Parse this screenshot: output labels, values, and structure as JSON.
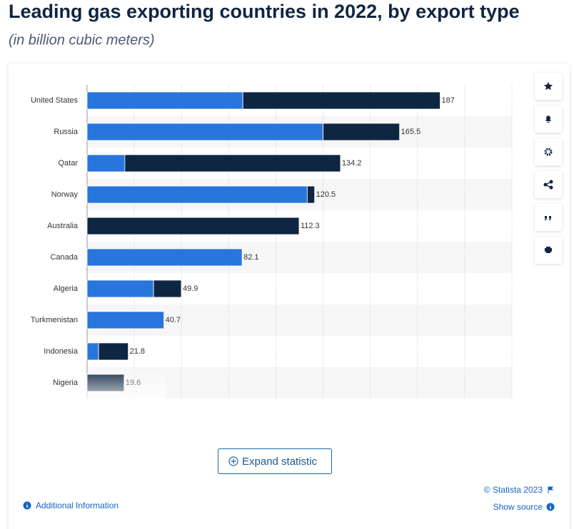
{
  "chart_data": {
    "type": "stacked-barh",
    "title": "Leading gas exporting countries in 2022, by export type",
    "subtitle": "(in billion cubic meters)",
    "categories": [
      "United States",
      "Russia",
      "Qatar",
      "Norway",
      "Australia",
      "Canada",
      "Algeria",
      "Turkmenistan",
      "Indonesia",
      "Nigeria"
    ],
    "series": [
      {
        "color": "#2876dd",
        "values": [
          82.5,
          125,
          20,
          116.6,
          0,
          82.1,
          35.2,
          40.7,
          6.1,
          0
        ]
      },
      {
        "color": "#0f2642",
        "values": [
          104.5,
          40.5,
          114.2,
          3.9,
          112.3,
          0,
          14.7,
          0,
          15.7,
          19.6
        ]
      }
    ],
    "totals": [
      187,
      165.5,
      134.2,
      120.5,
      112.3,
      82.1,
      49.9,
      40.7,
      21.8,
      19.6
    ],
    "xlim": [
      0,
      225
    ],
    "xticks": [
      0,
      25,
      50,
      75,
      100,
      125,
      150,
      175,
      200,
      225
    ],
    "grid": true
  },
  "ui": {
    "expand": "Expand statistic",
    "copyright": "© Statista 2023",
    "additional_info": "Additional Information",
    "show_source": "Show source"
  }
}
